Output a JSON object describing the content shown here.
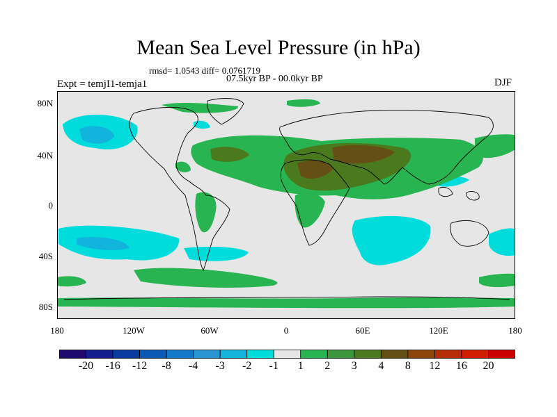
{
  "header": {
    "title": "Mean Sea Level Pressure (in hPa)",
    "stats": "rmsd= 1.0543 diff= 0.0761719",
    "period": "07.5kyr BP - 00.0kyr BP",
    "experiment": "Expt = temjI1-temja1",
    "season": "DJF"
  },
  "map": {
    "lat_labels": [
      "80N",
      "40N",
      "0",
      "40S",
      "80S"
    ],
    "lon_labels": [
      "180",
      "120W",
      "60W",
      "0",
      "60E",
      "120E",
      "180"
    ],
    "colors": {
      "background": "#e6e6e6",
      "neg_1_2": "#00dcdc",
      "neg_2_3": "#10b4dc",
      "neg_3_4": "#2c8cc8",
      "pos_1_2": "#28b450",
      "pos_2_3": "#3c963c",
      "pos_3_4": "#4b7a1e",
      "pos_4_8": "#645014"
    }
  },
  "colorbar": {
    "labels": [
      "-20",
      "-16",
      "-12",
      "-8",
      "-4",
      "-3",
      "-2",
      "-1",
      "1",
      "2",
      "3",
      "4",
      "8",
      "12",
      "16",
      "20"
    ],
    "colors": [
      "#1e0a6e",
      "#141e8c",
      "#0a3ca0",
      "#0a5ab4",
      "#1478c8",
      "#2894d2",
      "#14b4dc",
      "#00dcdc",
      "#e6e6e6",
      "#28b450",
      "#3c963c",
      "#4b7a1e",
      "#645014",
      "#8c460a",
      "#b42d05",
      "#d21e00",
      "#c80000"
    ]
  }
}
